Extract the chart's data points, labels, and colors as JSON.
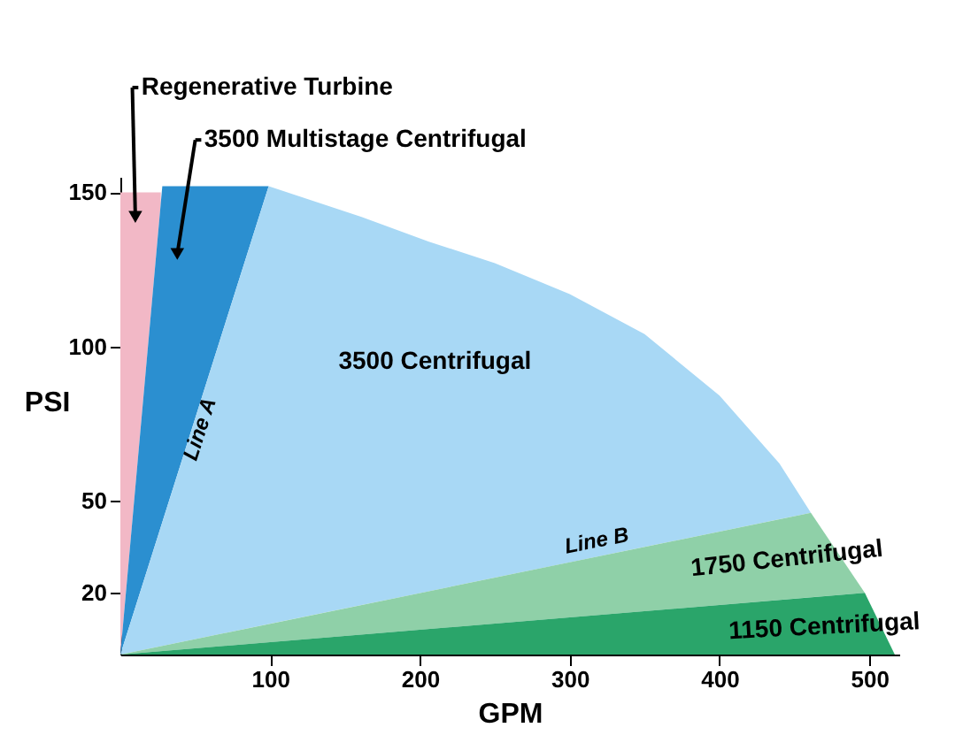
{
  "chart_data": {
    "type": "area",
    "xlabel": "GPM",
    "ylabel": "PSI",
    "series": [
      {
        "name": "Regenerative Turbine",
        "color": "#f2b8c6",
        "x": [
          0,
          27
        ],
        "values": [
          150,
          150
        ]
      },
      {
        "name": "3500 Multistage Centrifugal",
        "color": "#2b8fd0",
        "x": [
          0,
          28,
          99
        ],
        "values": [
          0,
          152,
          152
        ]
      },
      {
        "name": "3500 Centrifugal",
        "color": "#a8d8f5",
        "x": [
          0,
          99,
          161,
          206,
          250,
          300,
          350,
          400,
          440,
          461
        ],
        "values": [
          0,
          152,
          142,
          134,
          127,
          117,
          104,
          84,
          62,
          46
        ]
      },
      {
        "name": "1750 Centrifugal",
        "color": "#8fd0a8",
        "x": [
          0,
          461,
          497
        ],
        "values": [
          0,
          46,
          20
        ]
      },
      {
        "name": "1150 Centrifugal",
        "color": "#2aa56a",
        "x": [
          0,
          497,
          517
        ],
        "values": [
          0,
          20,
          0
        ]
      }
    ],
    "xlim": [
      0,
      520
    ],
    "xticks": [
      100,
      200,
      300,
      400,
      500
    ],
    "ylim": [
      0,
      155
    ],
    "yticks": [
      20,
      50,
      100,
      150
    ],
    "annotations": [
      {
        "text": "Line A",
        "x": 45,
        "y": 69
      },
      {
        "text": "Line B",
        "x": 320,
        "y": 32
      }
    ],
    "grid": false
  }
}
